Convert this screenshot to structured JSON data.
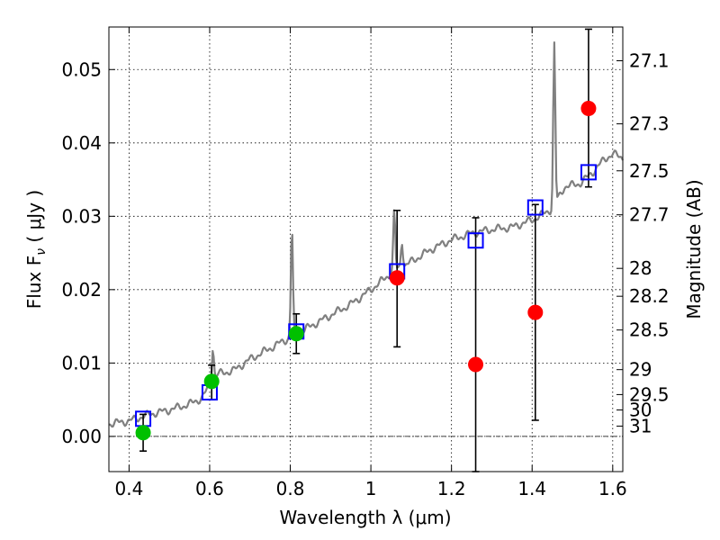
{
  "chart_data": {
    "type": "scatter",
    "xlabel": "Wavelength  λ (μm)",
    "ylabel": "Flux  F",
    "ylabel_sub": "ν",
    "ylabel_unit": "  ( μJy )",
    "y2label": "Magnitude (AB)",
    "xlim": [
      0.35,
      1.625
    ],
    "ylim": [
      -0.0048,
      0.0558
    ],
    "x_ticks": [
      0.4,
      0.6,
      0.8,
      1.0,
      1.2,
      1.4,
      1.6
    ],
    "x_tick_labels": [
      "0.4",
      "0.6",
      "0.8",
      "1",
      "1.2",
      "1.4",
      "1.6"
    ],
    "y_ticks": [
      0.0,
      0.01,
      0.02,
      0.03,
      0.04,
      0.05
    ],
    "y_tick_labels": [
      "0.00",
      "0.01",
      "0.02",
      "0.03",
      "0.04",
      "0.05"
    ],
    "y2_ticks": [
      {
        "label": "27.1",
        "flux": 0.0512
      },
      {
        "label": "27.3",
        "flux": 0.0426
      },
      {
        "label": "27.5",
        "flux": 0.0362
      },
      {
        "label": "27.7",
        "flux": 0.0302
      },
      {
        "label": "28",
        "flux": 0.0229
      },
      {
        "label": "28.2",
        "flux": 0.0191
      },
      {
        "label": "28.5",
        "flux": 0.0145
      },
      {
        "label": "29",
        "flux": 0.0091
      },
      {
        "label": "29.5",
        "flux": 0.0057
      },
      {
        "label": "30",
        "flux": 0.0036
      },
      {
        "label": "31",
        "flux": 0.0014
      }
    ],
    "grid": true,
    "zero_line": 0.0,
    "spectrum": {
      "color": "#808080",
      "continuum": [
        [
          0.35,
          0.0017
        ],
        [
          0.4,
          0.0021
        ],
        [
          0.45,
          0.003
        ],
        [
          0.5,
          0.0036
        ],
        [
          0.55,
          0.0044
        ],
        [
          0.58,
          0.0052
        ],
        [
          0.62,
          0.0085
        ],
        [
          0.66,
          0.009
        ],
        [
          0.7,
          0.0105
        ],
        [
          0.75,
          0.012
        ],
        [
          0.8,
          0.0135
        ],
        [
          0.85,
          0.015
        ],
        [
          0.9,
          0.0165
        ],
        [
          0.95,
          0.018
        ],
        [
          1.0,
          0.02
        ],
        [
          1.05,
          0.0222
        ],
        [
          1.1,
          0.0238
        ],
        [
          1.15,
          0.0255
        ],
        [
          1.2,
          0.0268
        ],
        [
          1.25,
          0.0277
        ],
        [
          1.3,
          0.0282
        ],
        [
          1.35,
          0.0285
        ],
        [
          1.4,
          0.0295
        ],
        [
          1.45,
          0.031
        ],
        [
          1.48,
          0.034
        ],
        [
          1.52,
          0.0345
        ],
        [
          1.55,
          0.036
        ],
        [
          1.58,
          0.0378
        ],
        [
          1.6,
          0.0385
        ],
        [
          1.625,
          0.038
        ]
      ],
      "lines": [
        {
          "x": 0.608,
          "peak": 0.0122
        },
        {
          "x": 0.804,
          "peak": 0.0285
        },
        {
          "x": 1.058,
          "peak": 0.0306
        },
        {
          "x": 1.077,
          "peak": 0.0267
        },
        {
          "x": 1.455,
          "peak": 0.0534
        }
      ]
    },
    "series": [
      {
        "marker": "square",
        "color": "#0000ff",
        "points": [
          {
            "x": 0.435,
            "y": 0.0024
          },
          {
            "x": 0.6,
            "y": 0.006
          },
          {
            "x": 0.815,
            "y": 0.0143
          },
          {
            "x": 1.065,
            "y": 0.0225
          },
          {
            "x": 1.26,
            "y": 0.0267
          },
          {
            "x": 1.408,
            "y": 0.0312
          },
          {
            "x": 1.54,
            "y": 0.036
          }
        ]
      },
      {
        "marker": "circle",
        "color": "#00c000",
        "points": [
          {
            "x": 0.435,
            "y": 0.0005,
            "ylo": -0.002,
            "yhi": 0.003
          },
          {
            "x": 0.605,
            "y": 0.0075,
            "ylo": 0.005,
            "yhi": 0.0097
          },
          {
            "x": 0.815,
            "y": 0.014,
            "ylo": 0.0113,
            "yhi": 0.0167
          }
        ]
      },
      {
        "marker": "circle",
        "color": "#ff0000",
        "points": [
          {
            "x": 1.065,
            "y": 0.0216,
            "ylo": 0.0122,
            "yhi": 0.0308
          },
          {
            "x": 1.26,
            "y": 0.0098,
            "ylo": -0.0048,
            "yhi": 0.0298
          },
          {
            "x": 1.408,
            "y": 0.0169,
            "ylo": 0.0022,
            "yhi": 0.0316
          },
          {
            "x": 1.54,
            "y": 0.0447,
            "ylo": 0.034,
            "yhi": 0.0555
          }
        ]
      }
    ]
  }
}
